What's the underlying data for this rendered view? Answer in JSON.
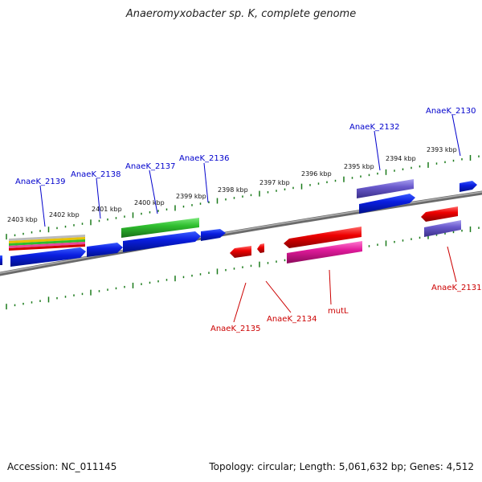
{
  "title": "Anaeromyxobacter sp. K, complete genome",
  "footer": {
    "accession": "Accession: NC_011145",
    "info": "Topology: circular; Length: 5,061,632 bp; Genes: 4,512"
  },
  "ruler_labels": [
    "2403 kbp",
    "2402 kbp",
    "2401 kbp",
    "2400 kbp",
    "2399 kbp",
    "2398 kbp",
    "2397 kbp",
    "2396 kbp",
    "2395 kbp",
    "2394 kbp",
    "2393 kbp"
  ],
  "genes_top": [
    "AnaeK_2139",
    "AnaeK_2138",
    "AnaeK_2137",
    "AnaeK_2136",
    "AnaeK_2132",
    "AnaeK_2130"
  ],
  "genes_bottom": [
    "AnaeK_2135",
    "AnaeK_2134",
    "mutL",
    "AnaeK_2131"
  ],
  "colors": {
    "forward_label": "#0000cc",
    "reverse_label": "#cc0000",
    "tick": "#1a7a1a",
    "backbone": "#888888"
  }
}
